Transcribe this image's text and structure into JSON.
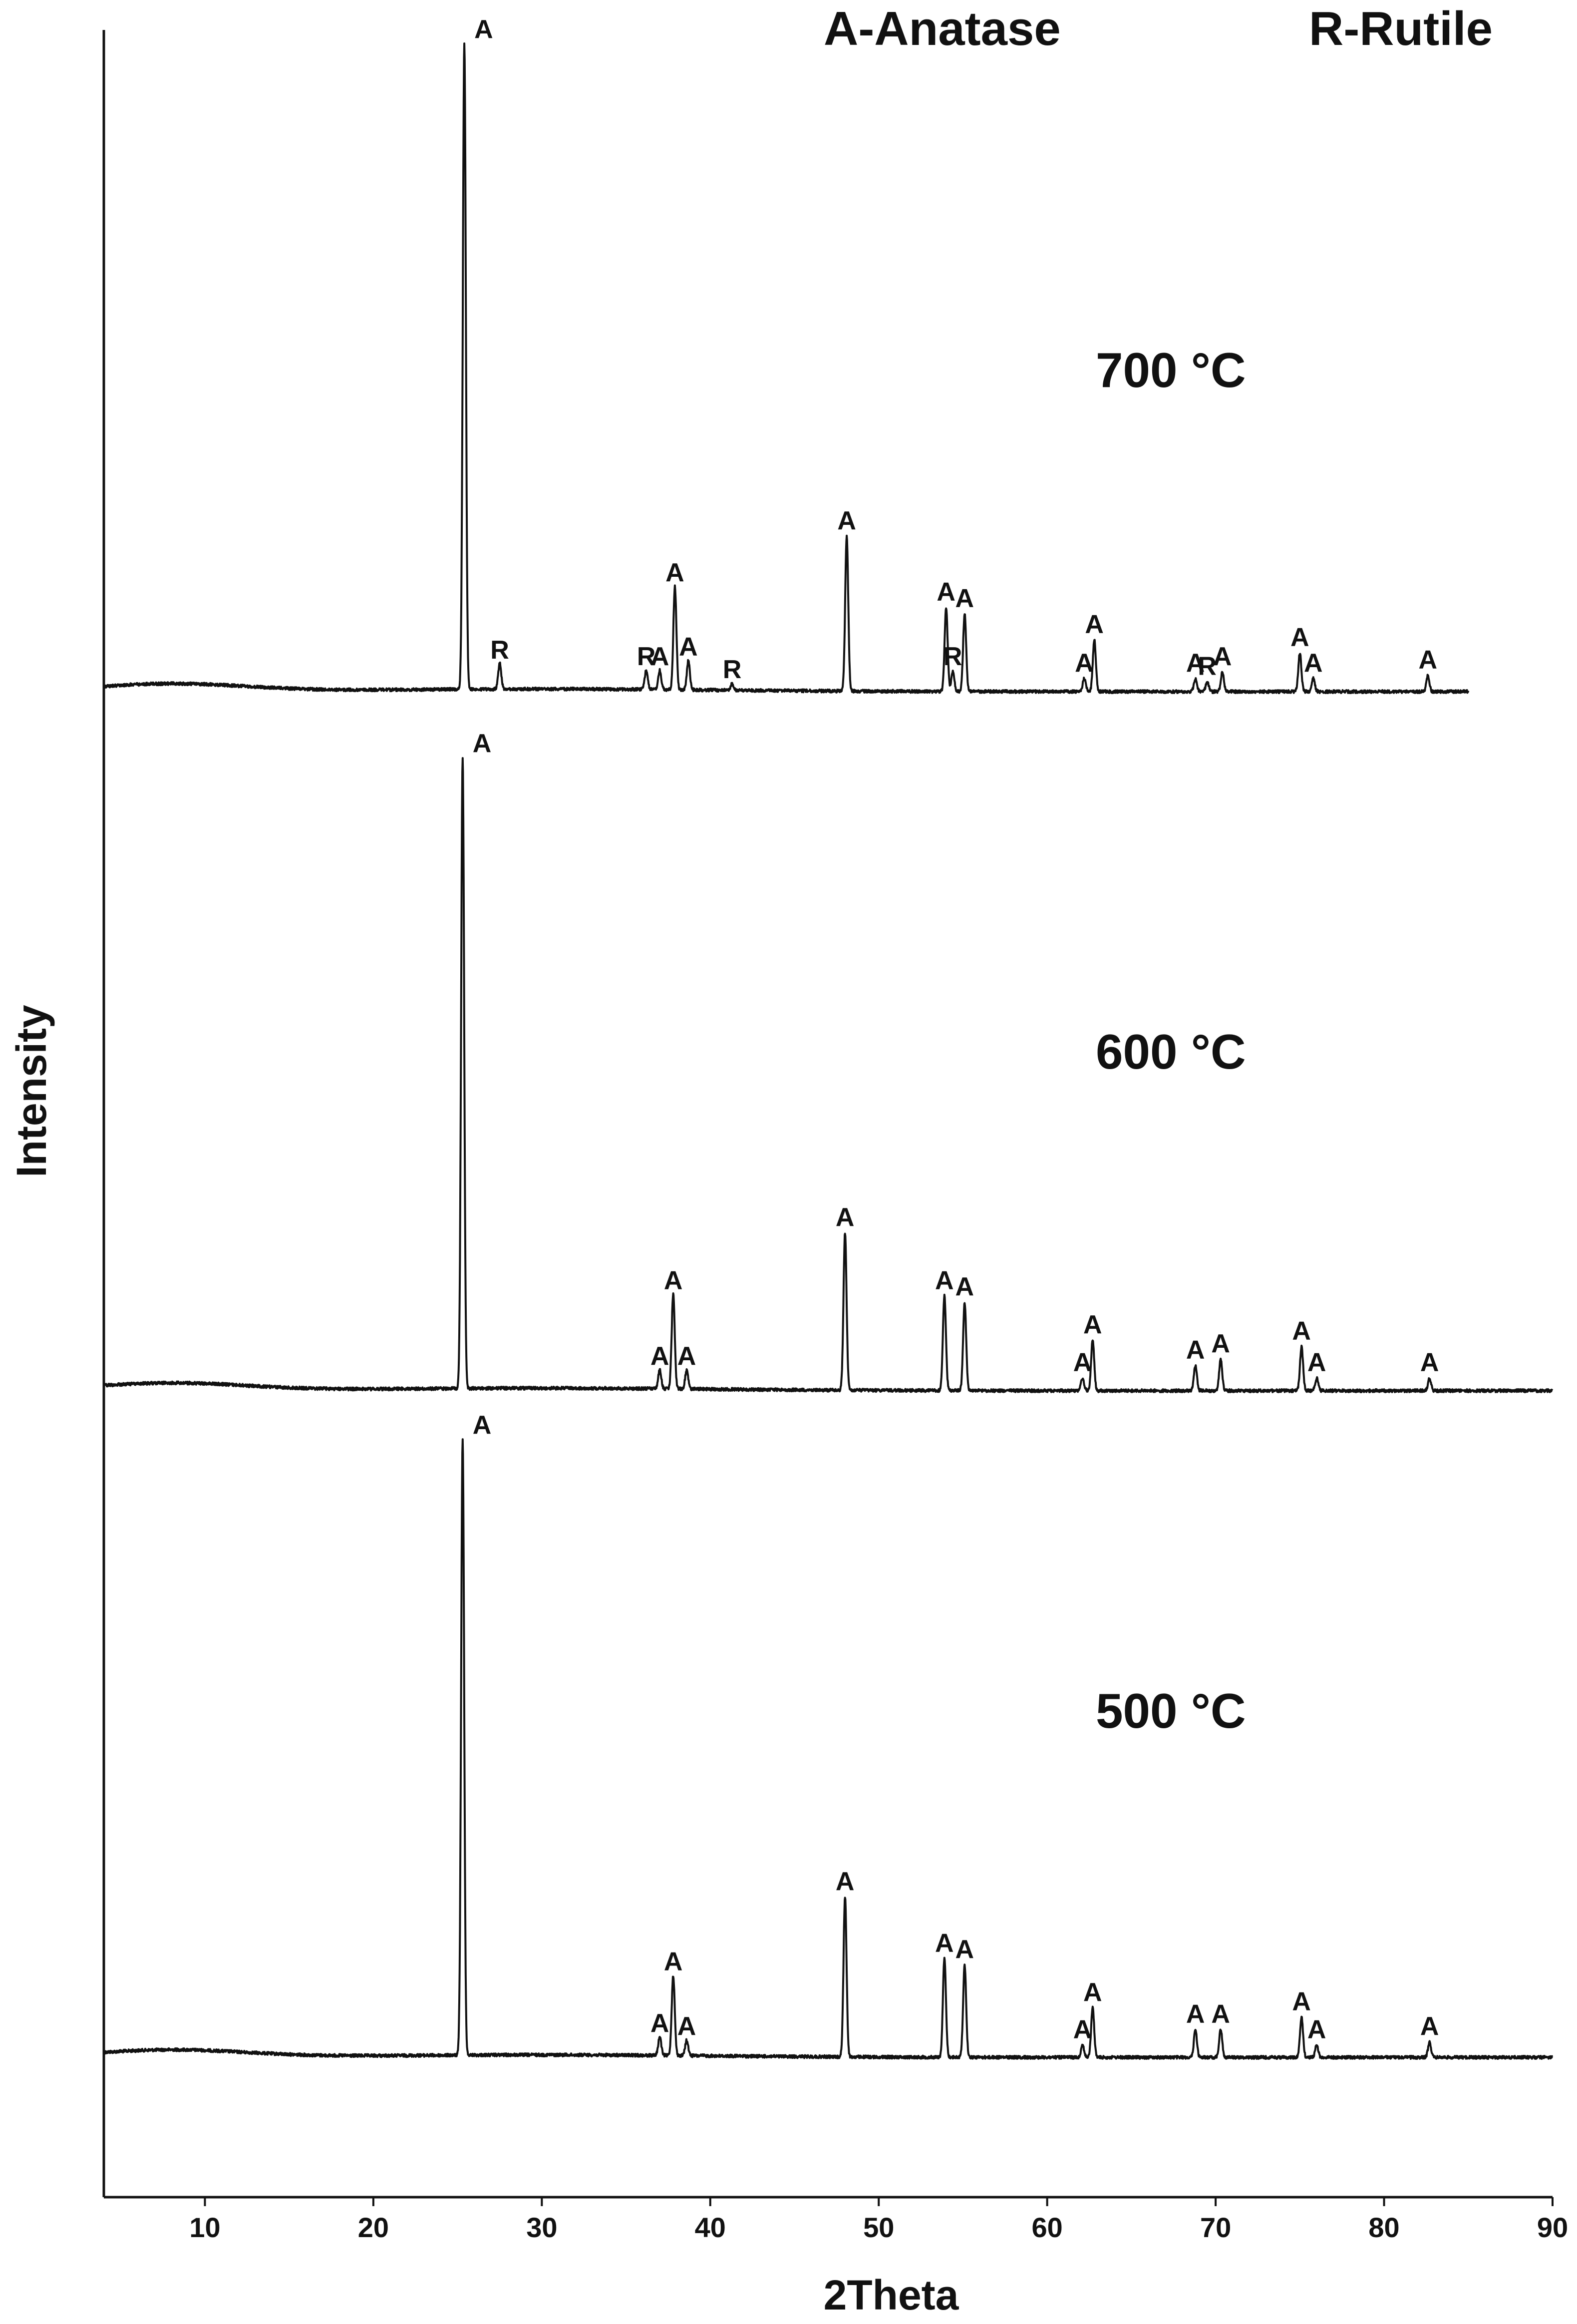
{
  "chart_data": {
    "type": "line",
    "title": "",
    "xlabel": "2Theta",
    "ylabel": "Intensity",
    "xlim": [
      4,
      90
    ],
    "xticks": [
      10,
      20,
      30,
      40,
      50,
      60,
      70,
      80,
      90
    ],
    "yticks_shown": false,
    "grid": false,
    "legend": [
      "A-Anatase",
      "R-Rutile"
    ],
    "legend_placement": "top",
    "colors": {
      "line": "#111111",
      "background": "#ffffff"
    },
    "series": [
      {
        "label": "500 °C",
        "x_end": 90,
        "peaks": [
          {
            "x": 25.3,
            "h": 1.0,
            "label": "A"
          },
          {
            "x": 37.0,
            "h": 0.03,
            "label": "A"
          },
          {
            "x": 37.8,
            "h": 0.13,
            "label": "A"
          },
          {
            "x": 38.6,
            "h": 0.025,
            "label": "A"
          },
          {
            "x": 48.0,
            "h": 0.26,
            "label": "A"
          },
          {
            "x": 53.9,
            "h": 0.16,
            "label": "A"
          },
          {
            "x": 55.1,
            "h": 0.15,
            "label": "A"
          },
          {
            "x": 62.1,
            "h": 0.02,
            "label": "A"
          },
          {
            "x": 62.7,
            "h": 0.08,
            "label": "A"
          },
          {
            "x": 68.8,
            "h": 0.045,
            "label": "A"
          },
          {
            "x": 70.3,
            "h": 0.045,
            "label": "A"
          },
          {
            "x": 75.1,
            "h": 0.065,
            "label": "A"
          },
          {
            "x": 76.0,
            "h": 0.02,
            "label": "A"
          },
          {
            "x": 82.7,
            "h": 0.025,
            "label": "A"
          }
        ]
      },
      {
        "label": "600 °C",
        "x_end": 90,
        "peaks": [
          {
            "x": 25.3,
            "h": 1.0,
            "label": "A"
          },
          {
            "x": 37.0,
            "h": 0.03,
            "label": "A"
          },
          {
            "x": 37.8,
            "h": 0.15,
            "label": "A"
          },
          {
            "x": 38.6,
            "h": 0.03,
            "label": "A"
          },
          {
            "x": 48.0,
            "h": 0.25,
            "label": "A"
          },
          {
            "x": 53.9,
            "h": 0.15,
            "label": "A"
          },
          {
            "x": 55.1,
            "h": 0.14,
            "label": "A"
          },
          {
            "x": 62.1,
            "h": 0.02,
            "label": "A"
          },
          {
            "x": 62.7,
            "h": 0.08,
            "label": "A"
          },
          {
            "x": 68.8,
            "h": 0.04,
            "label": "A"
          },
          {
            "x": 70.3,
            "h": 0.05,
            "label": "A"
          },
          {
            "x": 75.1,
            "h": 0.07,
            "label": "A"
          },
          {
            "x": 76.0,
            "h": 0.02,
            "label": "A"
          },
          {
            "x": 82.7,
            "h": 0.02,
            "label": "A"
          }
        ]
      },
      {
        "label": "700 °C",
        "x_end": 85,
        "peaks": [
          {
            "x": 25.4,
            "h": 1.0,
            "label": "A"
          },
          {
            "x": 27.5,
            "h": 0.04,
            "label": "R"
          },
          {
            "x": 36.2,
            "h": 0.03,
            "label": "R"
          },
          {
            "x": 37.0,
            "h": 0.03,
            "label": "A"
          },
          {
            "x": 37.9,
            "h": 0.16,
            "label": "A"
          },
          {
            "x": 38.7,
            "h": 0.045,
            "label": "A"
          },
          {
            "x": 41.3,
            "h": 0.01,
            "label": "R"
          },
          {
            "x": 48.1,
            "h": 0.24,
            "label": "A"
          },
          {
            "x": 54.0,
            "h": 0.13,
            "label": "A"
          },
          {
            "x": 54.4,
            "h": 0.03,
            "label": "R"
          },
          {
            "x": 55.1,
            "h": 0.12,
            "label": "A"
          },
          {
            "x": 62.2,
            "h": 0.02,
            "label": "A"
          },
          {
            "x": 62.8,
            "h": 0.08,
            "label": "A"
          },
          {
            "x": 68.8,
            "h": 0.02,
            "label": "A"
          },
          {
            "x": 69.5,
            "h": 0.015,
            "label": "R"
          },
          {
            "x": 70.4,
            "h": 0.03,
            "label": "A"
          },
          {
            "x": 75.0,
            "h": 0.06,
            "label": "A"
          },
          {
            "x": 75.8,
            "h": 0.02,
            "label": "A"
          },
          {
            "x": 82.6,
            "h": 0.025,
            "label": "A"
          }
        ]
      }
    ]
  }
}
